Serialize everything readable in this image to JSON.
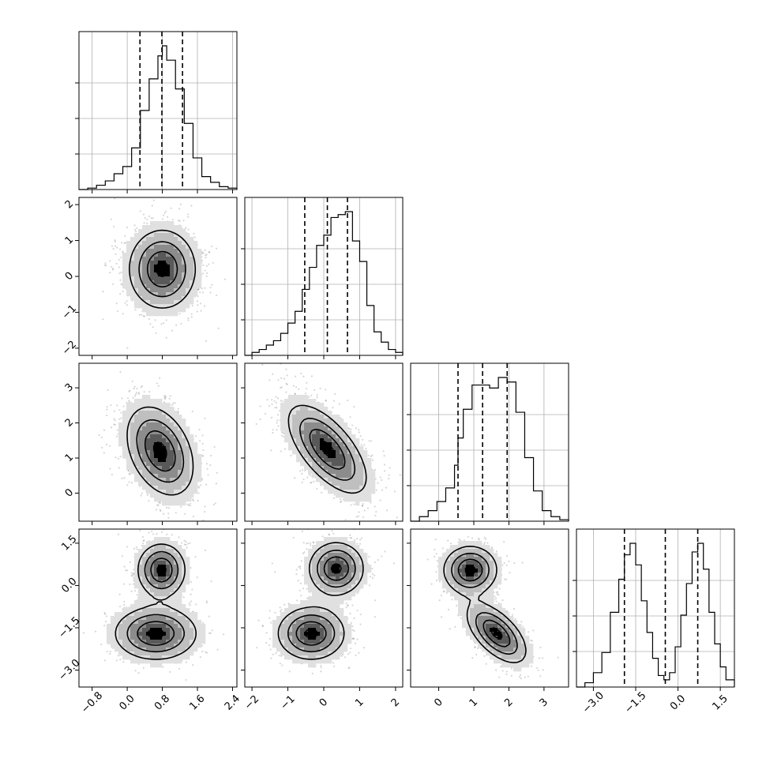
{
  "chart_data": {
    "type": "corner",
    "parameters": 4,
    "colors": {
      "ink": "#000000",
      "grid": "#b0b0b0",
      "background": "#ffffff"
    },
    "grid": true,
    "ranges": [
      [
        -1.1,
        2.5
      ],
      [
        -2.2,
        2.2
      ],
      [
        -0.8,
        3.7
      ],
      [
        -3.6,
        2.0
      ]
    ],
    "ticks": [
      {
        "values": [
          -0.8,
          0.0,
          0.8,
          1.6,
          2.4
        ],
        "labels": [
          "−0.8",
          "0.0",
          "0.8",
          "1.6",
          "2.4"
        ]
      },
      {
        "values": [
          -2,
          -1,
          0,
          1,
          2
        ],
        "labels": [
          "−2",
          "−1",
          "0",
          "1",
          "2"
        ]
      },
      {
        "values": [
          0,
          1,
          2,
          3
        ],
        "labels": [
          "0",
          "1",
          "2",
          "3"
        ]
      },
      {
        "values": [
          -3.0,
          -1.5,
          0.0,
          1.5
        ],
        "labels": [
          "−3.0",
          "−1.5",
          "0.0",
          "1.5"
        ]
      }
    ],
    "quantiles": [
      [
        0.29,
        0.79,
        1.26
      ],
      [
        -0.53,
        0.1,
        0.66
      ],
      [
        0.55,
        1.25,
        1.95
      ],
      [
        -1.9,
        -0.45,
        0.7
      ]
    ],
    "histograms": [
      {
        "edges": [
          -1.1,
          -0.9,
          -0.7,
          -0.5,
          -0.3,
          -0.1,
          0.1,
          0.3,
          0.5,
          0.7,
          0.8,
          0.9,
          1.1,
          1.3,
          1.5,
          1.7,
          1.9,
          2.1,
          2.3,
          2.5
        ],
        "counts": [
          0.0,
          0.01,
          0.03,
          0.06,
          0.11,
          0.16,
          0.29,
          0.55,
          0.77,
          0.93,
          1.0,
          0.9,
          0.7,
          0.46,
          0.22,
          0.09,
          0.05,
          0.02,
          0.01
        ]
      },
      {
        "edges": [
          -2.2,
          -2.0,
          -1.8,
          -1.6,
          -1.4,
          -1.2,
          -1.0,
          -0.8,
          -0.6,
          -0.4,
          -0.2,
          0.0,
          0.2,
          0.4,
          0.6,
          0.8,
          1.0,
          1.2,
          1.4,
          1.6,
          1.8,
          2.0,
          2.2
        ],
        "counts": [
          0.0,
          0.02,
          0.04,
          0.07,
          0.1,
          0.15,
          0.22,
          0.3,
          0.45,
          0.6,
          0.75,
          0.82,
          0.94,
          0.96,
          0.98,
          0.78,
          0.64,
          0.34,
          0.16,
          0.09,
          0.04,
          0.02
        ]
      },
      {
        "edges": [
          -0.8,
          -0.55,
          -0.3,
          -0.05,
          0.2,
          0.45,
          0.55,
          0.7,
          0.95,
          1.2,
          1.45,
          1.7,
          1.95,
          2.2,
          2.45,
          2.7,
          2.95,
          3.2,
          3.45,
          3.7
        ],
        "counts": [
          0.0,
          0.03,
          0.07,
          0.13,
          0.22,
          0.37,
          0.55,
          0.74,
          0.9,
          0.9,
          0.88,
          0.95,
          0.92,
          0.72,
          0.42,
          0.2,
          0.07,
          0.03,
          0.01
        ]
      },
      {
        "edges": [
          -3.6,
          -3.3,
          -3.0,
          -2.7,
          -2.4,
          -2.1,
          -1.9,
          -1.7,
          -1.5,
          -1.3,
          -1.1,
          -0.9,
          -0.7,
          -0.5,
          -0.3,
          -0.1,
          0.1,
          0.3,
          0.5,
          0.7,
          0.9,
          1.1,
          1.3,
          1.5,
          1.7,
          2.0
        ],
        "counts": [
          0.0,
          0.03,
          0.1,
          0.24,
          0.52,
          0.75,
          0.92,
          1.0,
          0.85,
          0.6,
          0.38,
          0.2,
          0.08,
          0.05,
          0.1,
          0.28,
          0.5,
          0.72,
          0.94,
          1.0,
          0.82,
          0.52,
          0.3,
          0.14,
          0.05
        ]
      }
    ],
    "pairs": [
      {
        "x": 0,
        "y": 1,
        "modes": [
          {
            "mx": 0.8,
            "my": 0.2,
            "sx": 0.45,
            "sy": 0.65,
            "rho": 0.0,
            "w": 1.0
          }
        ]
      },
      {
        "x": 0,
        "y": 2,
        "modes": [
          {
            "mx": 0.75,
            "my": 1.2,
            "sx": 0.45,
            "sy": 0.75,
            "rho": -0.35,
            "w": 1.0
          }
        ]
      },
      {
        "x": 1,
        "y": 2,
        "modes": [
          {
            "mx": 0.1,
            "my": 1.25,
            "sx": 0.65,
            "sy": 0.75,
            "rho": -0.65,
            "w": 1.0
          }
        ]
      },
      {
        "x": 0,
        "y": 3,
        "modes": [
          {
            "mx": 0.78,
            "my": 0.55,
            "sx": 0.32,
            "sy": 0.55,
            "rho": 0.0,
            "w": 1.0
          },
          {
            "mx": 0.65,
            "my": -1.7,
            "sx": 0.55,
            "sy": 0.55,
            "rho": 0.0,
            "w": 1.0
          }
        ]
      },
      {
        "x": 1,
        "y": 3,
        "modes": [
          {
            "mx": 0.35,
            "my": 0.6,
            "sx": 0.45,
            "sy": 0.55,
            "rho": 0.0,
            "w": 1.0
          },
          {
            "mx": -0.35,
            "my": -1.7,
            "sx": 0.55,
            "sy": 0.55,
            "rho": 0.0,
            "w": 1.0
          }
        ]
      },
      {
        "x": 2,
        "y": 3,
        "modes": [
          {
            "mx": 0.9,
            "my": 0.55,
            "sx": 0.45,
            "sy": 0.5,
            "rho": 0.0,
            "w": 1.0
          },
          {
            "mx": 1.65,
            "my": -1.7,
            "sx": 0.5,
            "sy": 0.62,
            "rho": -0.6,
            "w": 1.0
          }
        ]
      }
    ]
  }
}
